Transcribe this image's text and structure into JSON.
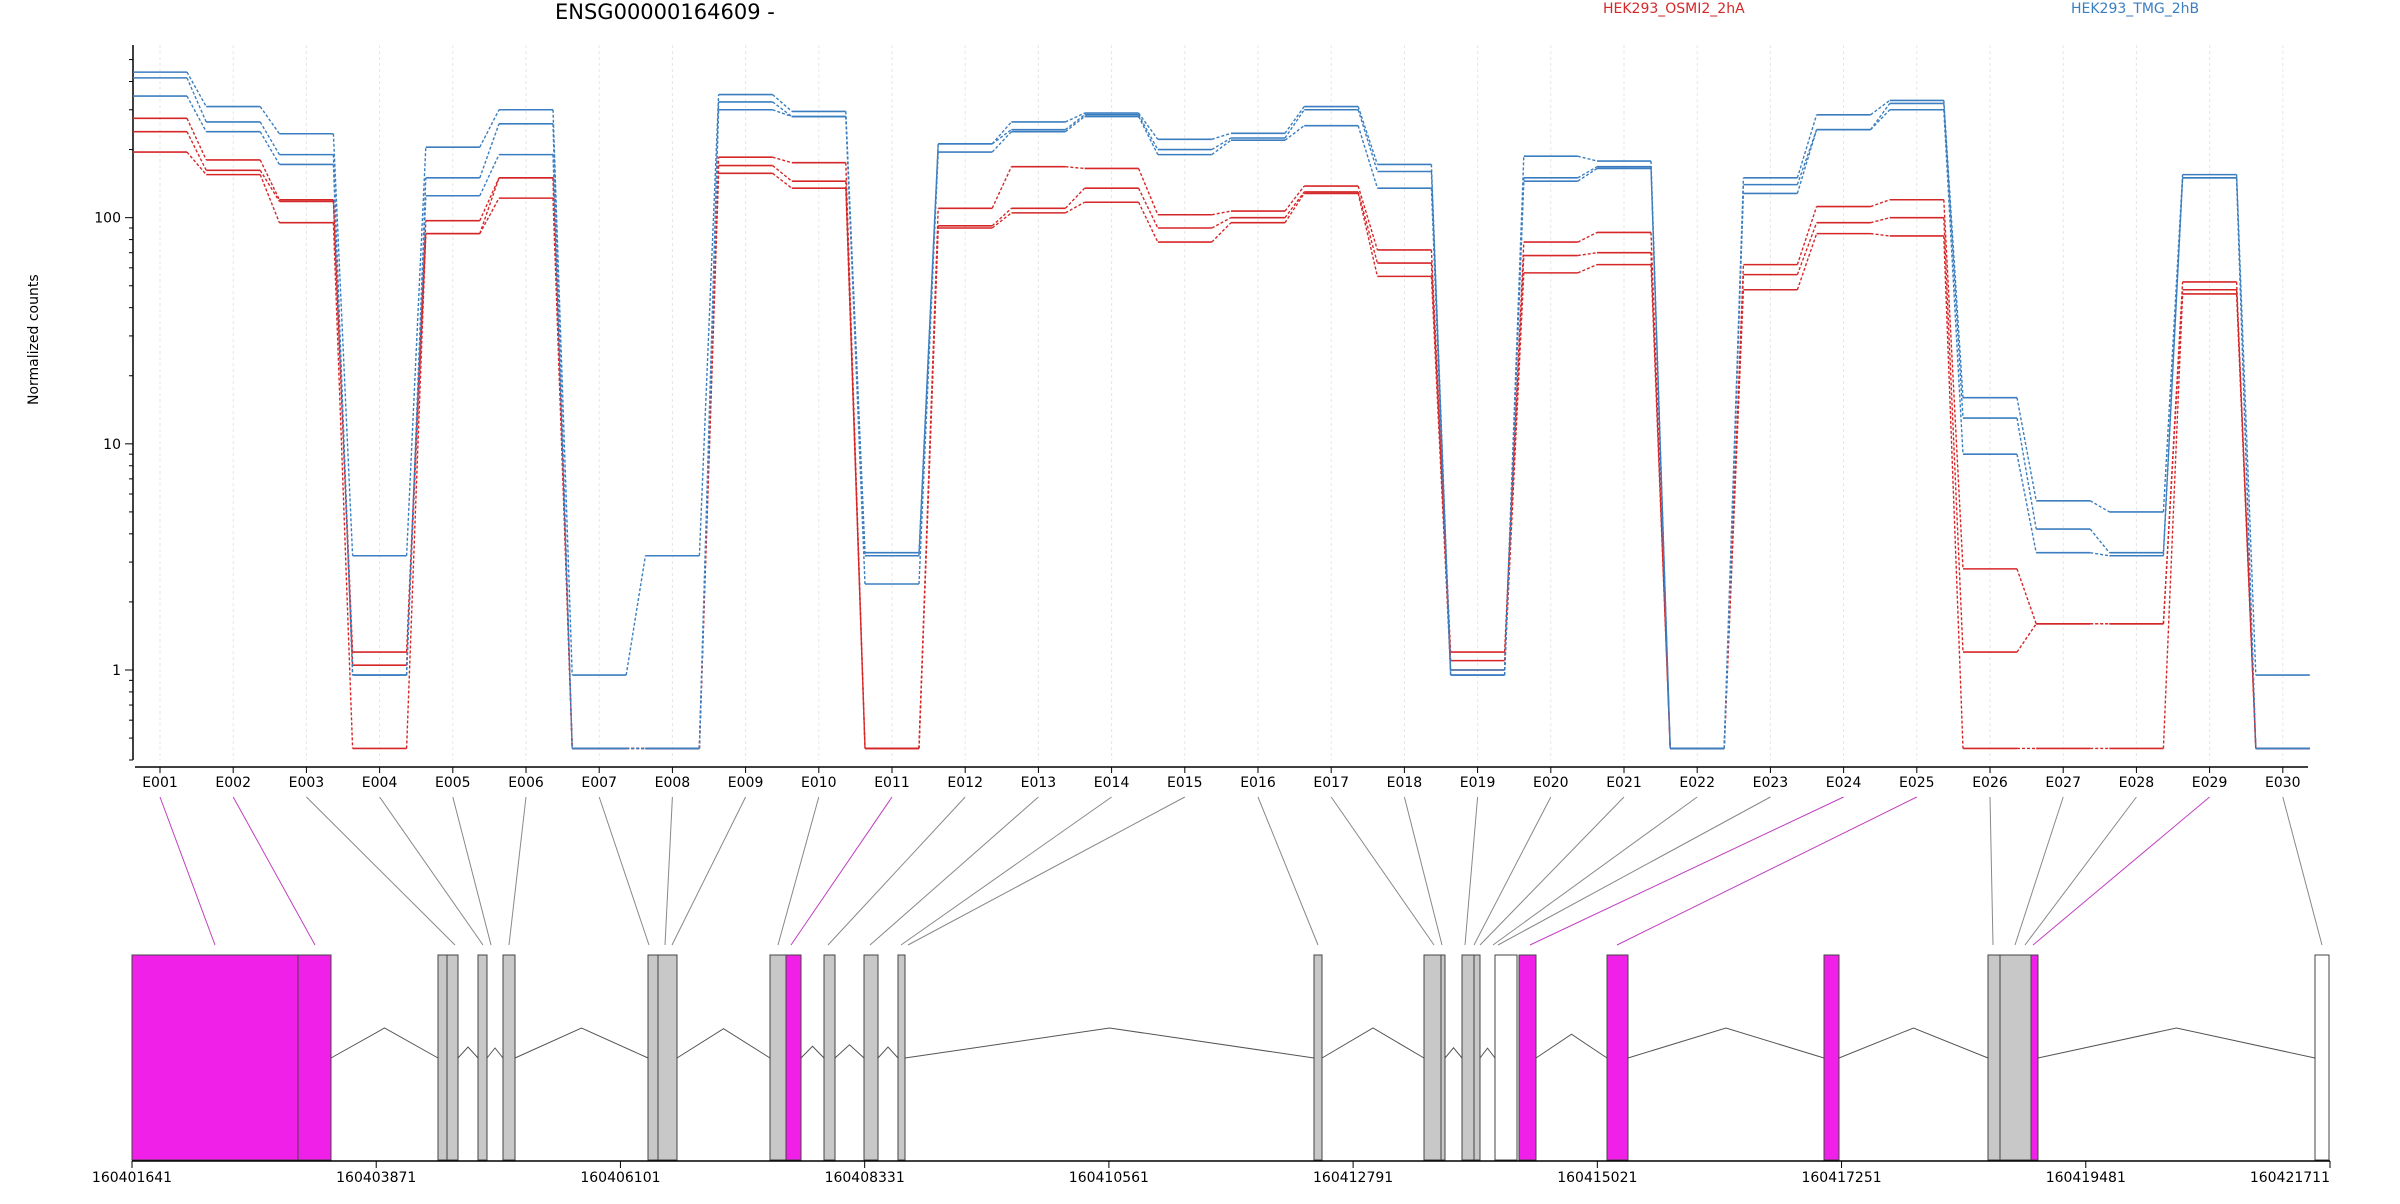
{
  "chart_data": {
    "type": "line",
    "title": "ENSG00000164609 -",
    "ylabel": "Normalized counts",
    "yscale": "log",
    "ylim": [
      0.4,
      580
    ],
    "yticks": [
      {
        "value": 1,
        "label": "1"
      },
      {
        "value": 10,
        "label": "10"
      },
      {
        "value": 100,
        "label": "100"
      }
    ],
    "legend": [
      {
        "name": "HEK293_OSMI2_2hA",
        "color": "#d62728"
      },
      {
        "name": "HEK293_TMG_2hB",
        "color": "#3b7ec0"
      }
    ],
    "categories": [
      "E001",
      "E002",
      "E003",
      "E004",
      "E005",
      "E006",
      "E007",
      "E008",
      "E009",
      "E010",
      "E011",
      "E012",
      "E013",
      "E014",
      "E015",
      "E016",
      "E017",
      "E018",
      "E019",
      "E020",
      "E021",
      "E022",
      "E023",
      "E024",
      "E025",
      "E026",
      "E027",
      "E028",
      "E029",
      "E030"
    ],
    "series": [
      {
        "group": "HEK293_OSMI2_2hA",
        "color": "#d62728",
        "values": [
          275,
          180,
          120,
          1.2,
          97,
          150,
          0.45,
          0.45,
          185,
          175,
          0.45,
          110,
          168,
          165,
          103,
          107,
          138,
          72,
          1.2,
          78,
          86,
          0.45,
          62,
          112,
          120,
          2.8,
          1.6,
          1.6,
          52,
          0.45
        ]
      },
      {
        "group": "HEK293_OSMI2_2hA",
        "color": "#d62728",
        "values": [
          240,
          162,
          118,
          1.05,
          85,
          150,
          0.45,
          0.45,
          170,
          145,
          0.45,
          92,
          110,
          135,
          90,
          100,
          130,
          63,
          1.1,
          68,
          70,
          0.45,
          56,
          95,
          100,
          1.2,
          1.6,
          1.6,
          48,
          0.45
        ]
      },
      {
        "group": "HEK293_OSMI2_2hA",
        "color": "#d62728",
        "values": [
          195,
          155,
          95,
          0.45,
          85,
          122,
          0.45,
          0.45,
          157,
          135,
          0.45,
          90,
          105,
          117,
          78,
          95,
          128,
          55,
          1.0,
          57,
          62,
          0.45,
          48,
          85,
          83,
          0.45,
          0.45,
          0.45,
          46,
          0.45
        ]
      },
      {
        "group": "HEK293_TMG_2hB",
        "color": "#3b7ec0",
        "values": [
          440,
          310,
          235,
          3.2,
          205,
          300,
          0.95,
          3.2,
          350,
          295,
          3.3,
          212,
          265,
          290,
          222,
          236,
          310,
          172,
          1.0,
          187,
          178,
          0.45,
          150,
          285,
          330,
          16,
          5.6,
          5.0,
          155,
          0.95
        ]
      },
      {
        "group": "HEK293_TMG_2hB",
        "color": "#3b7ec0",
        "values": [
          415,
          265,
          190,
          0.95,
          150,
          260,
          0.45,
          0.45,
          325,
          280,
          3.2,
          212,
          245,
          285,
          200,
          225,
          300,
          160,
          0.95,
          150,
          168,
          0.45,
          140,
          245,
          320,
          13,
          4.2,
          3.3,
          150,
          0.45
        ]
      },
      {
        "group": "HEK293_TMG_2hB",
        "color": "#3b7ec0",
        "values": [
          345,
          240,
          172,
          0.95,
          125,
          190,
          0.45,
          0.45,
          300,
          280,
          2.4,
          195,
          240,
          280,
          190,
          220,
          255,
          135,
          0.95,
          145,
          165,
          0.45,
          128,
          245,
          300,
          9,
          3.3,
          3.2,
          150,
          0.45
        ]
      }
    ],
    "gene_model": {
      "genomic_ticks": [
        "160401641",
        "160403871",
        "160406101",
        "160408331",
        "160410561",
        "160412791",
        "160415021",
        "160417251",
        "160419481",
        "160421711"
      ],
      "highlight_color": "#f020e8",
      "exon_fill_color": "#c8c8c8"
    }
  }
}
